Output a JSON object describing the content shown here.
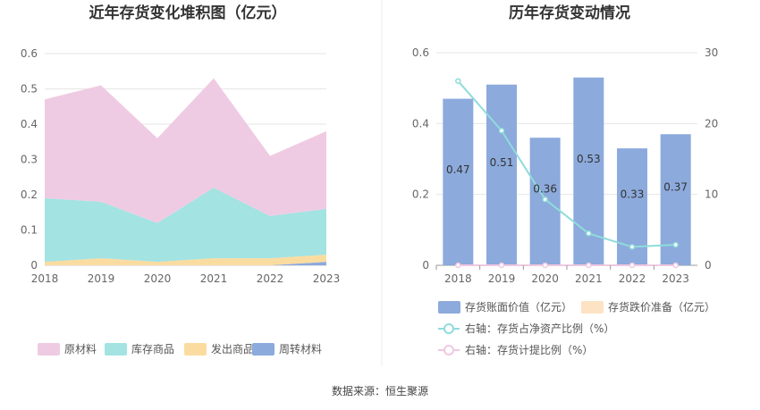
{
  "footer": {
    "source": "数据来源：恒生聚源"
  },
  "chart_data": [
    {
      "type": "area",
      "title": "近年存货变化堆积图（亿元）",
      "stacked": true,
      "x": [
        "2018",
        "2019",
        "2020",
        "2021",
        "2022",
        "2023"
      ],
      "ylim": [
        0,
        0.6
      ],
      "yticks": [
        "0",
        "0.1",
        "0.2",
        "0.3",
        "0.4",
        "0.5",
        "0.6"
      ],
      "grid": true,
      "legend_position": "bottom",
      "series": [
        {
          "name": "周转材料",
          "color": "#8caadc",
          "values": [
            0,
            0,
            0,
            0,
            0,
            0.01
          ]
        },
        {
          "name": "发出商品",
          "color": "#fbdca0",
          "values": [
            0.01,
            0.02,
            0.01,
            0.02,
            0.02,
            0.02
          ]
        },
        {
          "name": "库存商品",
          "color": "#a3e3e2",
          "values": [
            0.18,
            0.16,
            0.11,
            0.2,
            0.12,
            0.13
          ]
        },
        {
          "name": "原材料",
          "color": "#efcbe3",
          "values": [
            0.28,
            0.33,
            0.24,
            0.31,
            0.17,
            0.22
          ]
        }
      ],
      "legend_order": [
        "原材料",
        "库存商品",
        "发出商品",
        "周转材料"
      ]
    },
    {
      "type": "bar",
      "title": "历年存货变动情况",
      "x": [
        "2018",
        "2019",
        "2020",
        "2021",
        "2022",
        "2023"
      ],
      "ylim": [
        0,
        0.6
      ],
      "yticks": [
        "0",
        "0.2",
        "0.4",
        "0.6"
      ],
      "y2lim": [
        0,
        30
      ],
      "y2ticks": [
        "0",
        "10",
        "20",
        "30"
      ],
      "grid": true,
      "legend_position": "bottom",
      "series": [
        {
          "name": "存货账面价值（亿元）",
          "kind": "bar",
          "axis": "left",
          "color": "#8caadc",
          "values": [
            0.47,
            0.51,
            0.36,
            0.53,
            0.33,
            0.37
          ],
          "labels": [
            "0.47",
            "0.51",
            "0.36",
            "0.53",
            "0.33",
            "0.37"
          ]
        },
        {
          "name": "存货跌价准备（亿元）",
          "kind": "bar",
          "axis": "left",
          "color": "#fbe3c3",
          "values": [
            0,
            0,
            0,
            0,
            0,
            0
          ]
        },
        {
          "name": "右轴：存货占净资产比例（%）",
          "kind": "line",
          "axis": "right",
          "color": "#8fdcdb",
          "values": [
            26.0,
            19.0,
            9.3,
            4.5,
            2.6,
            2.9
          ]
        },
        {
          "name": "右轴：存货计提比例（%）",
          "kind": "line",
          "axis": "right",
          "color": "#f0c8e0",
          "values": [
            0,
            0,
            0,
            0,
            0,
            0
          ]
        }
      ]
    }
  ]
}
